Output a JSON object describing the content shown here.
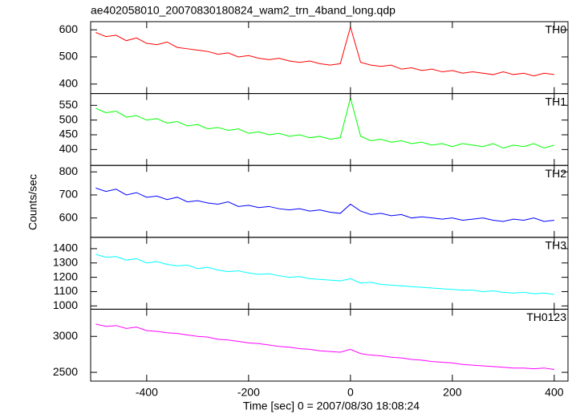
{
  "chart_data": [
    {
      "type": "line",
      "title": "ae402058010_20070830180824_wam2_trn_4band_long.qdp",
      "x": [
        -500,
        -480,
        -460,
        -440,
        -420,
        -400,
        -380,
        -360,
        -340,
        -320,
        -300,
        -280,
        -260,
        -240,
        -220,
        -200,
        -180,
        -160,
        -140,
        -120,
        -100,
        -80,
        -60,
        -40,
        -20,
        0,
        20,
        40,
        60,
        80,
        100,
        120,
        140,
        160,
        180,
        200,
        220,
        240,
        260,
        280,
        300,
        320,
        340,
        360,
        380,
        400
      ],
      "series": [
        {
          "name": "TH0",
          "color": "#ff0000",
          "values": [
            590,
            575,
            580,
            560,
            570,
            550,
            545,
            555,
            535,
            530,
            525,
            520,
            510,
            515,
            500,
            505,
            495,
            490,
            495,
            485,
            480,
            485,
            475,
            470,
            475,
            610,
            480,
            470,
            465,
            470,
            455,
            460,
            450,
            455,
            445,
            450,
            440,
            445,
            440,
            435,
            445,
            435,
            440,
            430,
            440,
            435
          ]
        }
      ],
      "xlim": [
        -510,
        427
      ],
      "xticks": [
        -400,
        -200,
        0,
        200,
        400
      ],
      "ylim": [
        365,
        630
      ],
      "yticks": [
        400,
        500,
        600
      ]
    },
    {
      "type": "line",
      "x": [
        -500,
        -480,
        -460,
        -440,
        -420,
        -400,
        -380,
        -360,
        -340,
        -320,
        -300,
        -280,
        -260,
        -240,
        -220,
        -200,
        -180,
        -160,
        -140,
        -120,
        -100,
        -80,
        -60,
        -40,
        -20,
        0,
        20,
        40,
        60,
        80,
        100,
        120,
        140,
        160,
        180,
        200,
        220,
        240,
        260,
        280,
        300,
        320,
        340,
        360,
        380,
        400
      ],
      "series": [
        {
          "name": "TH1",
          "color": "#00ff00",
          "values": [
            540,
            525,
            530,
            510,
            515,
            500,
            505,
            490,
            495,
            480,
            485,
            470,
            475,
            465,
            470,
            455,
            460,
            450,
            455,
            445,
            450,
            440,
            445,
            435,
            440,
            575,
            445,
            430,
            435,
            425,
            430,
            420,
            425,
            415,
            420,
            410,
            420,
            415,
            410,
            420,
            405,
            415,
            410,
            420,
            405,
            415
          ]
        }
      ],
      "xlim": [
        -510,
        427
      ],
      "xticks": [
        -400,
        -200,
        0,
        200,
        400
      ],
      "ylim": [
        346,
        590
      ],
      "yticks": [
        400,
        450,
        500,
        550
      ]
    },
    {
      "type": "line",
      "ylabel": "Counts/sec",
      "x": [
        -500,
        -480,
        -460,
        -440,
        -420,
        -400,
        -380,
        -360,
        -340,
        -320,
        -300,
        -280,
        -260,
        -240,
        -220,
        -200,
        -180,
        -160,
        -140,
        -120,
        -100,
        -80,
        -60,
        -40,
        -20,
        0,
        20,
        40,
        60,
        80,
        100,
        120,
        140,
        160,
        180,
        200,
        220,
        240,
        260,
        280,
        300,
        320,
        340,
        360,
        380,
        400
      ],
      "series": [
        {
          "name": "TH2",
          "color": "#0000ff",
          "values": [
            730,
            715,
            725,
            700,
            710,
            690,
            695,
            680,
            690,
            670,
            675,
            665,
            660,
            670,
            650,
            655,
            645,
            650,
            640,
            635,
            640,
            630,
            635,
            625,
            620,
            660,
            630,
            615,
            620,
            610,
            615,
            600,
            605,
            600,
            595,
            600,
            590,
            595,
            600,
            590,
            585,
            595,
            590,
            600,
            585,
            590
          ]
        }
      ],
      "xlim": [
        -510,
        427
      ],
      "xticks": [
        -400,
        -200,
        0,
        200,
        400
      ],
      "ylim": [
        516,
        828
      ],
      "yticks": [
        600,
        700,
        800
      ]
    },
    {
      "type": "line",
      "x": [
        -500,
        -480,
        -460,
        -440,
        -420,
        -400,
        -380,
        -360,
        -340,
        -320,
        -300,
        -280,
        -260,
        -240,
        -220,
        -200,
        -180,
        -160,
        -140,
        -120,
        -100,
        -80,
        -60,
        -40,
        -20,
        0,
        20,
        40,
        60,
        80,
        100,
        120,
        140,
        160,
        180,
        200,
        220,
        240,
        260,
        280,
        300,
        320,
        340,
        360,
        380,
        400
      ],
      "series": [
        {
          "name": "TH3",
          "color": "#00ffff",
          "values": [
            1360,
            1340,
            1345,
            1320,
            1330,
            1300,
            1310,
            1290,
            1280,
            1285,
            1260,
            1270,
            1250,
            1240,
            1245,
            1230,
            1220,
            1225,
            1210,
            1200,
            1205,
            1190,
            1185,
            1180,
            1175,
            1190,
            1160,
            1165,
            1150,
            1145,
            1140,
            1135,
            1130,
            1125,
            1120,
            1115,
            1110,
            1110,
            1100,
            1105,
            1095,
            1090,
            1095,
            1085,
            1090,
            1080
          ]
        }
      ],
      "xlim": [
        -510,
        427
      ],
      "xticks": [
        -400,
        -200,
        0,
        200,
        400
      ],
      "ylim": [
        977,
        1479
      ],
      "yticks": [
        1000,
        1100,
        1200,
        1300,
        1400
      ]
    },
    {
      "type": "line",
      "xlabel": "Time [sec] 0 = 2007/08/30 18:08:24",
      "x": [
        -500,
        -480,
        -460,
        -440,
        -420,
        -400,
        -380,
        -360,
        -340,
        -320,
        -300,
        -280,
        -260,
        -240,
        -220,
        -200,
        -180,
        -160,
        -140,
        -120,
        -100,
        -80,
        -60,
        -40,
        -20,
        0,
        20,
        40,
        60,
        80,
        100,
        120,
        140,
        160,
        180,
        200,
        220,
        240,
        260,
        280,
        300,
        320,
        340,
        360,
        380,
        400
      ],
      "series": [
        {
          "name": "TH0123",
          "color": "#ff00ff",
          "values": [
            3170,
            3140,
            3150,
            3110,
            3130,
            3080,
            3070,
            3050,
            3040,
            3020,
            3000,
            2990,
            2960,
            2950,
            2930,
            2910,
            2900,
            2880,
            2860,
            2850,
            2830,
            2820,
            2800,
            2790,
            2780,
            2820,
            2760,
            2740,
            2730,
            2710,
            2700,
            2680,
            2670,
            2650,
            2640,
            2630,
            2610,
            2600,
            2590,
            2580,
            2570,
            2560,
            2560,
            2550,
            2560,
            2540
          ]
        }
      ],
      "xlim": [
        -510,
        427
      ],
      "xticks": [
        -400,
        -200,
        0,
        200,
        400
      ],
      "ylim": [
        2378,
        3378
      ],
      "yticks": [
        2500,
        3000
      ]
    }
  ]
}
